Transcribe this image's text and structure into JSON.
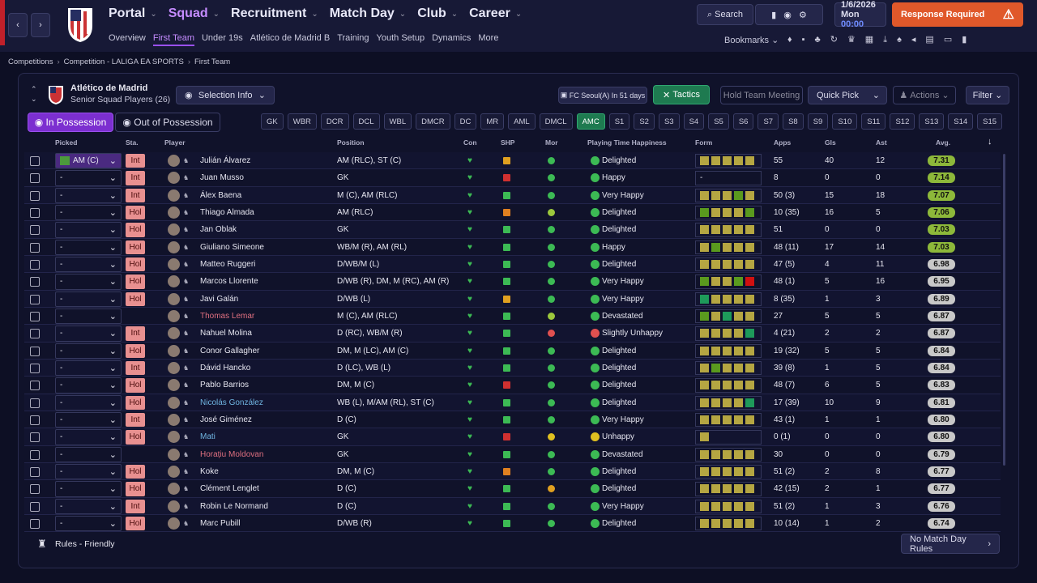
{
  "nav": {
    "menus": [
      "Portal",
      "Squad",
      "Recruitment",
      "Match Day",
      "Club",
      "Career"
    ],
    "active_menu": 1,
    "submenu": [
      "Overview",
      "First Team",
      "Under 19s",
      "Atlético de Madrid B",
      "Training",
      "Youth Setup",
      "Dynamics",
      "More"
    ],
    "active_submenu": 1,
    "search": "Search",
    "date": "1/6/2026",
    "day": "Mon",
    "time": "00:00",
    "alert": "Response Required",
    "bookmarks": "Bookmarks"
  },
  "breadcrumb": [
    "Competitions",
    "Competition - LALIGA EA SPORTS",
    "First Team"
  ],
  "header": {
    "club": "Atlético de Madrid",
    "subtitle": "Senior Squad Players (26)",
    "selection": "Selection Info",
    "fixture": "FC Seoul(A) In 51 days",
    "tactics": "Tactics",
    "meeting": "Hold Team Meeting",
    "quick_pick": "Quick Pick",
    "actions": "Actions",
    "filter": "Filter"
  },
  "tabs": [
    "In Possession",
    "Out of Possession"
  ],
  "positions": [
    "GK",
    "WBR",
    "DCR",
    "DCL",
    "WBL",
    "DMCR",
    "DC",
    "MR",
    "AML",
    "DMCL",
    "AMC",
    "S1",
    "S2",
    "S3",
    "S4",
    "S5",
    "S6",
    "S7",
    "S8",
    "S9",
    "S10",
    "S11",
    "S12",
    "S13",
    "S14",
    "S15"
  ],
  "active_position": 10,
  "table": {
    "columns": [
      "Picked",
      "Sta.",
      "Player",
      "Position",
      "Con",
      "SHP",
      "Mor",
      "Playing Time Happiness",
      "Form",
      "Apps",
      "Gls",
      "Ast",
      "Avg."
    ],
    "rows": [
      {
        "picked": "AM (C)",
        "status": "Int",
        "name": "Julián Álvarez",
        "position": "AM (RLC), ST (C)",
        "shp": "#e0a020",
        "mor": "#3cba54",
        "happiness": "Delighted",
        "form": [
          "#b5a642",
          "#b5a642",
          "#b5a642",
          "#b5a642",
          "#b5a642"
        ],
        "apps": "55",
        "gls": "40",
        "ast": "12",
        "avg": "7.31"
      },
      {
        "picked": "-",
        "status": "Int",
        "name": "Juan Musso",
        "position": "GK",
        "shp": "#d03030",
        "mor": "#3cba54",
        "happiness": "Happy",
        "form": "-",
        "apps": "8",
        "gls": "0",
        "ast": "0",
        "avg": "7.14"
      },
      {
        "picked": "-",
        "status": "Int",
        "name": "Álex Baena",
        "position": "M (C), AM (RLC)",
        "shp": "#3cba54",
        "mor": "#3cba54",
        "happiness": "Very Happy",
        "form": [
          "#b5a642",
          "#b5a642",
          "#b5a642",
          "#5a9a1e",
          "#b5a642"
        ],
        "apps": "50 (3)",
        "gls": "15",
        "ast": "18",
        "avg": "7.07"
      },
      {
        "picked": "-",
        "status": "Hol",
        "name": "Thiago Almada",
        "position": "AM (RLC)",
        "shp": "#e08020",
        "mor": "#9cc83c",
        "happiness": "Delighted",
        "form": [
          "#5a9a1e",
          "#b5a642",
          "#b5a642",
          "#b5a642",
          "#5a9a1e"
        ],
        "apps": "10 (35)",
        "gls": "16",
        "ast": "5",
        "avg": "7.06"
      },
      {
        "picked": "-",
        "status": "Hol",
        "name": "Jan Oblak",
        "position": "GK",
        "shp": "#3cba54",
        "mor": "#3cba54",
        "happiness": "Delighted",
        "form": [
          "#b5a642",
          "#b5a642",
          "#b5a642",
          "#b5a642",
          "#b5a642"
        ],
        "apps": "51",
        "gls": "0",
        "ast": "0",
        "avg": "7.03"
      },
      {
        "picked": "-",
        "status": "Hol",
        "name": "Giuliano Simeone",
        "position": "WB/M (R), AM (RL)",
        "shp": "#3cba54",
        "mor": "#3cba54",
        "happiness": "Happy",
        "form": [
          "#b5a642",
          "#5a9a1e",
          "#b5a642",
          "#b5a642",
          "#b5a642"
        ],
        "apps": "48 (11)",
        "gls": "17",
        "ast": "14",
        "avg": "7.03"
      },
      {
        "picked": "-",
        "status": "Hol",
        "name": "Matteo Ruggeri",
        "position": "D/WB/M (L)",
        "shp": "#3cba54",
        "mor": "#3cba54",
        "happiness": "Delighted",
        "form": [
          "#b5a642",
          "#b5a642",
          "#b5a642",
          "#b5a642",
          "#b5a642"
        ],
        "apps": "47 (5)",
        "gls": "4",
        "ast": "11",
        "avg": "6.98"
      },
      {
        "picked": "-",
        "status": "Hol",
        "name": "Marcos Llorente",
        "position": "D/WB (R), DM, M (RC), AM (R)",
        "shp": "#3cba54",
        "mor": "#3cba54",
        "happiness": "Very Happy",
        "form": [
          "#5a9a1e",
          "#b5a642",
          "#b5a642",
          "#5a9a1e",
          "#d01010"
        ],
        "apps": "48 (1)",
        "gls": "5",
        "ast": "16",
        "avg": "6.95"
      },
      {
        "picked": "-",
        "status": "Hol",
        "name": "Javi Galán",
        "position": "D/WB (L)",
        "shp": "#e0a020",
        "mor": "#3cba54",
        "happiness": "Very Happy",
        "form": [
          "#1e9a5a",
          "#b5a642",
          "#b5a642",
          "#b5a642",
          "#b5a642"
        ],
        "apps": "8 (35)",
        "gls": "1",
        "ast": "3",
        "avg": "6.89"
      },
      {
        "picked": "-",
        "status": null,
        "name": "Thomas Lemar",
        "name_color": "#e07080",
        "position": "M (C), AM (RLC)",
        "shp": "#3cba54",
        "mor": "#9cc83c",
        "happiness": "Devastated",
        "form": [
          "#5a9a1e",
          "#b5a642",
          "#1e9a5a",
          "#b5a642",
          "#b5a642"
        ],
        "apps": "27",
        "gls": "5",
        "ast": "5",
        "avg": "6.87"
      },
      {
        "picked": "-",
        "status": "Int",
        "name": "Nahuel Molina",
        "position": "D (RC), WB/M (R)",
        "shp": "#3cba54",
        "mor": "#e05050",
        "happiness": "Slightly Unhappy",
        "form": [
          "#b5a642",
          "#b5a642",
          "#b5a642",
          "#b5a642",
          "#1e9a5a"
        ],
        "apps": "4 (21)",
        "gls": "2",
        "ast": "2",
        "avg": "6.87"
      },
      {
        "picked": "-",
        "status": "Hol",
        "name": "Conor Gallagher",
        "position": "DM, M (LC), AM (C)",
        "shp": "#3cba54",
        "mor": "#3cba54",
        "happiness": "Delighted",
        "form": [
          "#b5a642",
          "#b5a642",
          "#b5a642",
          "#b5a642",
          "#b5a642"
        ],
        "apps": "19 (32)",
        "gls": "5",
        "ast": "5",
        "avg": "6.84"
      },
      {
        "picked": "-",
        "status": "Int",
        "name": "Dávid Hancko",
        "position": "D (LC), WB (L)",
        "shp": "#3cba54",
        "mor": "#3cba54",
        "happiness": "Delighted",
        "form": [
          "#b5a642",
          "#5a9a1e",
          "#b5a642",
          "#b5a642",
          "#b5a642"
        ],
        "apps": "39 (8)",
        "gls": "1",
        "ast": "5",
        "avg": "6.84"
      },
      {
        "picked": "-",
        "status": "Hol",
        "name": "Pablo Barrios",
        "position": "DM, M (C)",
        "shp": "#d03030",
        "mor": "#3cba54",
        "happiness": "Delighted",
        "form": [
          "#b5a642",
          "#b5a642",
          "#b5a642",
          "#b5a642",
          "#b5a642"
        ],
        "apps": "48 (7)",
        "gls": "6",
        "ast": "5",
        "avg": "6.83"
      },
      {
        "picked": "-",
        "status": "Hol",
        "name": "Nicolás González",
        "name_color": "#6fb4e0",
        "position": "WB (L), M/AM (RL), ST (C)",
        "shp": "#3cba54",
        "mor": "#3cba54",
        "happiness": "Delighted",
        "form": [
          "#b5a642",
          "#b5a642",
          "#b5a642",
          "#b5a642",
          "#1e9a5a"
        ],
        "apps": "17 (39)",
        "gls": "10",
        "ast": "9",
        "avg": "6.81"
      },
      {
        "picked": "-",
        "status": "Int",
        "name": "José Giménez",
        "position": "D (C)",
        "shp": "#3cba54",
        "mor": "#3cba54",
        "happiness": "Very Happy",
        "form": [
          "#b5a642",
          "#b5a642",
          "#b5a642",
          "#b5a642",
          "#b5a642"
        ],
        "apps": "43 (1)",
        "gls": "1",
        "ast": "1",
        "avg": "6.80"
      },
      {
        "picked": "-",
        "status": "Hol",
        "name": "Mati",
        "name_color": "#6fb4e0",
        "position": "GK",
        "shp": "#d03030",
        "mor": "#e0c020",
        "happiness": "Unhappy",
        "form": [
          "#b5a642"
        ],
        "apps": "0 (1)",
        "gls": "0",
        "ast": "0",
        "avg": "6.80"
      },
      {
        "picked": "-",
        "status": null,
        "name": "Horațiu Moldovan",
        "name_color": "#e07080",
        "position": "GK",
        "shp": "#3cba54",
        "mor": "#3cba54",
        "happiness": "Devastated",
        "form": [
          "#b5a642",
          "#b5a642",
          "#b5a642",
          "#b5a642",
          "#b5a642"
        ],
        "apps": "30",
        "gls": "0",
        "ast": "0",
        "avg": "6.79"
      },
      {
        "picked": "-",
        "status": "Hol",
        "name": "Koke",
        "position": "DM, M (C)",
        "shp": "#e08020",
        "mor": "#3cba54",
        "happiness": "Delighted",
        "form": [
          "#b5a642",
          "#b5a642",
          "#b5a642",
          "#b5a642",
          "#b5a642"
        ],
        "apps": "51 (2)",
        "gls": "2",
        "ast": "8",
        "avg": "6.77"
      },
      {
        "picked": "-",
        "status": "Hol",
        "name": "Clément Lenglet",
        "position": "D (C)",
        "shp": "#3cba54",
        "mor": "#e0a020",
        "happiness": "Delighted",
        "form": [
          "#b5a642",
          "#b5a642",
          "#b5a642",
          "#b5a642",
          "#b5a642"
        ],
        "apps": "42 (15)",
        "gls": "2",
        "ast": "1",
        "avg": "6.77"
      },
      {
        "picked": "-",
        "status": "Int",
        "name": "Robin Le Normand",
        "position": "D (C)",
        "shp": "#3cba54",
        "mor": "#3cba54",
        "happiness": "Very Happy",
        "form": [
          "#b5a642",
          "#b5a642",
          "#b5a642",
          "#b5a642",
          "#b5a642"
        ],
        "apps": "51 (2)",
        "gls": "1",
        "ast": "3",
        "avg": "6.76"
      },
      {
        "picked": "-",
        "status": "Hol",
        "name": "Marc Pubill",
        "position": "D/WB (R)",
        "shp": "#3cba54",
        "mor": "#3cba54",
        "happiness": "Delighted",
        "form": [
          "#b5a642",
          "#b5a642",
          "#b5a642",
          "#b5a642",
          "#b5a642"
        ],
        "apps": "10 (14)",
        "gls": "1",
        "ast": "2",
        "avg": "6.74"
      }
    ]
  },
  "footer": {
    "rules": "Rules - Friendly",
    "match_day": "No Match Day Rules"
  }
}
